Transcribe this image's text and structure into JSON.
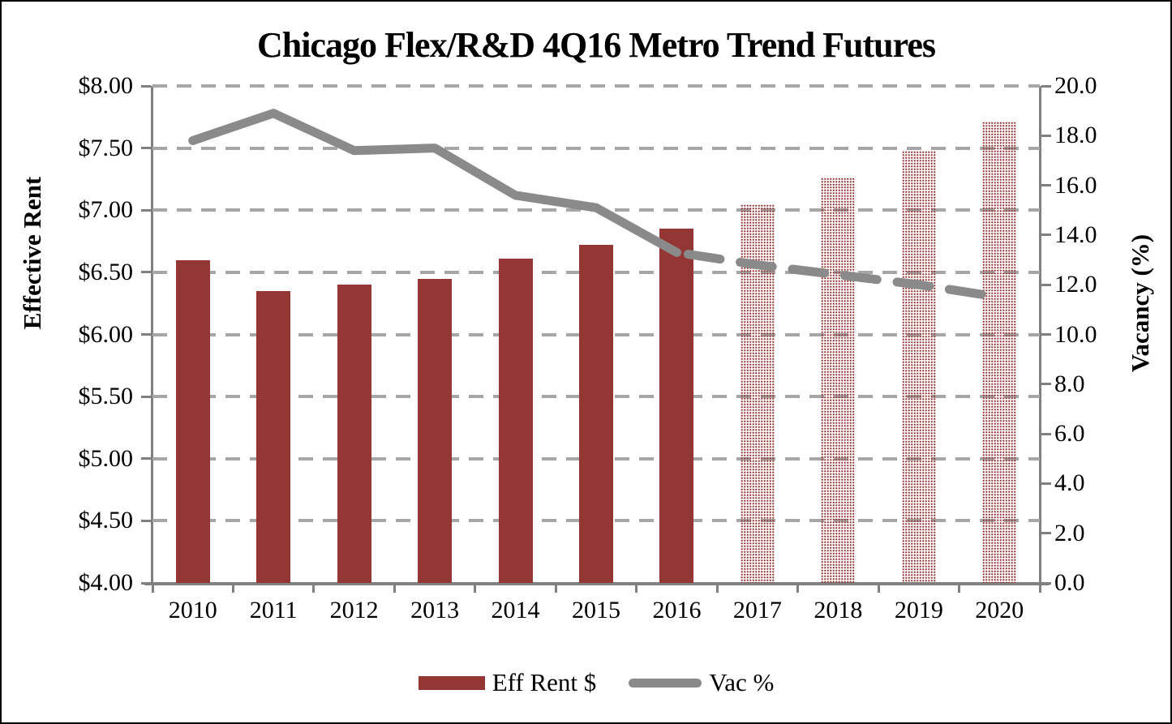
{
  "title": "Chicago Flex/R&D 4Q16 Metro Trend Futures",
  "chart_data": {
    "type": "combo",
    "categories": [
      "2010",
      "2011",
      "2012",
      "2013",
      "2014",
      "2015",
      "2016",
      "2017",
      "2018",
      "2019",
      "2020"
    ],
    "series": [
      {
        "name": "Eff Rent $",
        "type": "bar",
        "axis": "left",
        "values": [
          6.6,
          6.35,
          6.4,
          6.45,
          6.61,
          6.72,
          6.85,
          7.05,
          7.26,
          7.48,
          7.71
        ],
        "forecast_start_index": 7,
        "forecast_style": "dotted-pattern",
        "color": "#943634"
      },
      {
        "name": "Vac %",
        "type": "line",
        "axis": "right",
        "values": [
          17.8,
          18.9,
          17.4,
          17.5,
          15.6,
          15.1,
          13.3,
          12.8,
          12.4,
          12.0,
          11.5
        ],
        "forecast_start_index": 7,
        "forecast_style": "dashed",
        "color": "#8a8a8a"
      }
    ],
    "left_axis": {
      "title": "Effective Rent",
      "min": 4.0,
      "max": 8.0,
      "step": 0.5,
      "tick_labels": [
        "$8.00",
        "$7.50",
        "$7.00",
        "$6.50",
        "$6.00",
        "$5.50",
        "$5.00",
        "$4.50",
        "$4.00"
      ]
    },
    "right_axis": {
      "title": "Vacancy (%)",
      "min": 0.0,
      "max": 20.0,
      "step": 2.0,
      "tick_labels": [
        "20.0",
        "18.0",
        "16.0",
        "14.0",
        "12.0",
        "10.0",
        "8.0",
        "6.0",
        "4.0",
        "2.0",
        "0.0"
      ]
    },
    "grid": "horizontal-dashed",
    "legend": {
      "position": "bottom",
      "items": [
        {
          "label": "Eff Rent $",
          "swatch": "bar"
        },
        {
          "label": "Vac %",
          "swatch": "line"
        }
      ]
    }
  },
  "colors": {
    "bar": "#943634",
    "line": "#8a8a8a",
    "gridline": "#a6a6a6",
    "axis": "#808080",
    "background": "#ffffff",
    "border": "#000000",
    "text": "#000000"
  }
}
